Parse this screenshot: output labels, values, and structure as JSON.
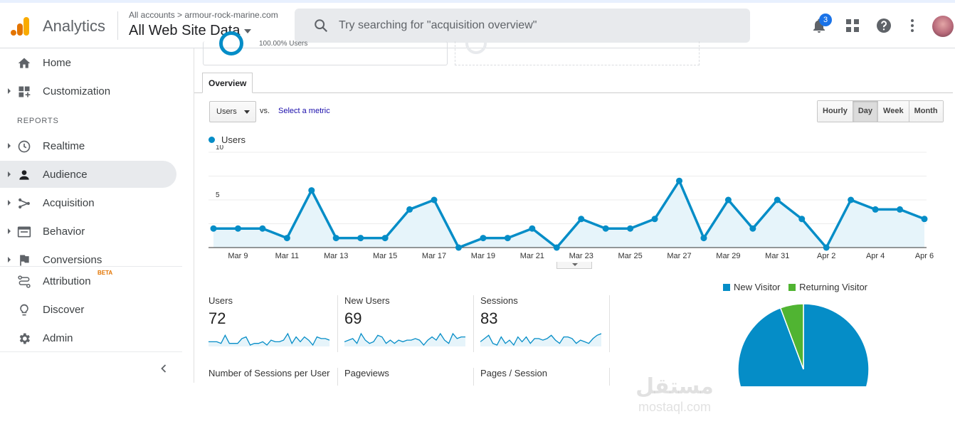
{
  "app": {
    "name": "Analytics"
  },
  "account": {
    "crumb": "All accounts > armour-rock-marine.com",
    "view": "All Web Site Data"
  },
  "search": {
    "placeholder": "Try searching for \"acquisition overview\""
  },
  "notifications": {
    "count": "3"
  },
  "sidebar": {
    "items": [
      {
        "label": "Home",
        "icon": "home-icon"
      },
      {
        "label": "Customization",
        "icon": "dashboard-icon"
      },
      {
        "label": "Realtime",
        "icon": "clock-icon"
      },
      {
        "label": "Audience",
        "icon": "person-icon"
      },
      {
        "label": "Acquisition",
        "icon": "acquisition-icon"
      },
      {
        "label": "Behavior",
        "icon": "behavior-icon"
      },
      {
        "label": "Conversions",
        "icon": "flag-icon"
      },
      {
        "label": "Attribution",
        "icon": "attribution-icon",
        "badge": "BETA"
      },
      {
        "label": "Discover",
        "icon": "lightbulb-icon"
      },
      {
        "label": "Admin",
        "icon": "gear-icon"
      }
    ],
    "reports_heading": "REPORTS"
  },
  "top_card": {
    "text": "100.00% Users"
  },
  "tab": {
    "label": "Overview"
  },
  "controls": {
    "metric": "Users",
    "vs": "vs.",
    "select_metric": "Select a metric",
    "granularity": [
      "Hourly",
      "Day",
      "Week",
      "Month"
    ],
    "selected_granularity": "Day"
  },
  "chart_data": {
    "type": "line",
    "title": "",
    "legend": [
      "Users"
    ],
    "series": [
      {
        "name": "Users",
        "color": "#058dc7",
        "values": [
          2,
          2,
          2,
          1,
          6,
          1,
          1,
          1,
          4,
          5,
          0,
          1,
          1,
          2,
          0,
          3,
          2,
          2,
          3,
          7,
          1,
          5,
          2,
          5,
          3,
          0,
          5,
          4,
          4,
          3
        ]
      }
    ],
    "x_labels": [
      "Mar 9",
      "Mar 11",
      "Mar 13",
      "Mar 15",
      "Mar 17",
      "Mar 19",
      "Mar 21",
      "Mar 23",
      "Mar 25",
      "Mar 27",
      "Mar 29",
      "Mar 31",
      "Apr 2",
      "Apr 4",
      "Apr 6"
    ],
    "y_ticks": [
      "10",
      "5"
    ],
    "ylim": [
      0,
      10
    ]
  },
  "stats": [
    {
      "label": "Users",
      "value": "72"
    },
    {
      "label": "New Users",
      "value": "69"
    },
    {
      "label": "Sessions",
      "value": "83"
    },
    {
      "label": "Number of Sessions per User",
      "value": ""
    },
    {
      "label": "Pageviews",
      "value": ""
    },
    {
      "label": "Pages / Session",
      "value": ""
    }
  ],
  "pie": {
    "legend": [
      {
        "name": "New Visitor",
        "color": "#058dc7"
      },
      {
        "name": "Returning Visitor",
        "color": "#50b432"
      }
    ],
    "values": [
      94.3,
      5.7
    ]
  },
  "watermark": {
    "arabic": "مستقل",
    "latin": "mostaql.com"
  }
}
